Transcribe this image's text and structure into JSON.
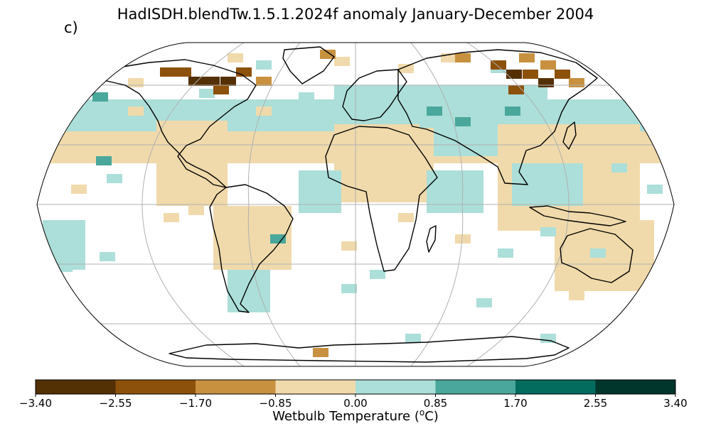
{
  "title": "HadISDH.blendTw.1.5.1.2024f anomaly January-December 2004",
  "panel_label": "c)",
  "colorbar": {
    "label_prefix": "Wetbulb Temperature (",
    "label_sup": "o",
    "label_suffix": "C)",
    "ticks": [
      "−3.40",
      "−2.55",
      "−1.70",
      "−0.85",
      "0.00",
      "0.85",
      "1.70",
      "2.55",
      "3.40"
    ],
    "bins": [
      {
        "from": -3.4,
        "to": -2.55,
        "color": "#543005"
      },
      {
        "from": -2.55,
        "to": -1.7,
        "color": "#8c510a"
      },
      {
        "from": -1.7,
        "to": -0.85,
        "color": "#c8913f"
      },
      {
        "from": -0.85,
        "to": 0.0,
        "color": "#f0daab"
      },
      {
        "from": 0.0,
        "to": 0.85,
        "color": "#acdfd9"
      },
      {
        "from": 0.85,
        "to": 1.7,
        "color": "#4aa79b"
      },
      {
        "from": 1.7,
        "to": 2.55,
        "color": "#046b5f"
      },
      {
        "from": 2.55,
        "to": 3.4,
        "color": "#00362c"
      }
    ]
  },
  "map": {
    "projection": "Robinson",
    "grid": "on"
  }
}
